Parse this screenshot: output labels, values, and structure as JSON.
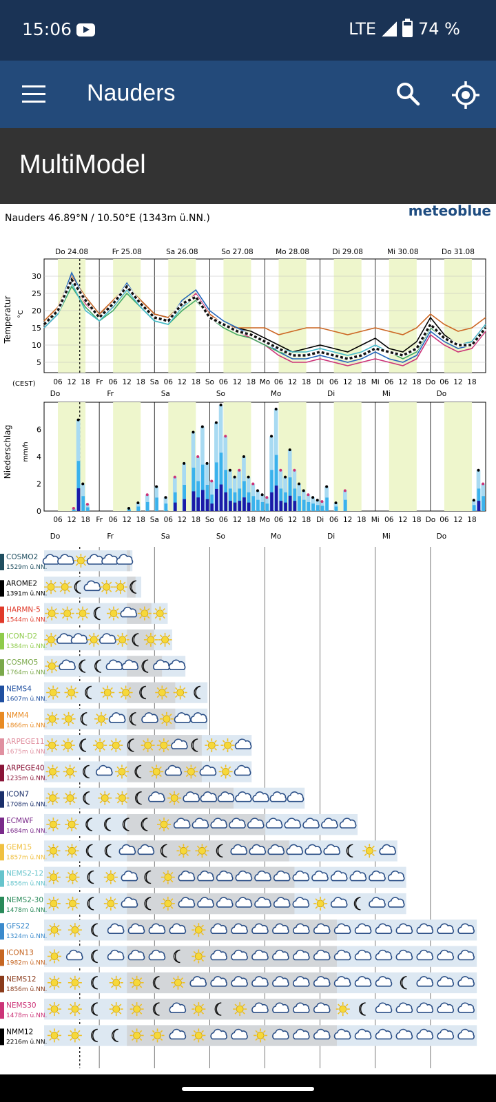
{
  "status": {
    "time": "15:06",
    "network": "LTE",
    "battery": "74 %",
    "battery_level": 0.74
  },
  "appbar": {
    "title": "Nauders"
  },
  "subheader": {
    "title": "MultiModel"
  },
  "meteogram": {
    "brand": "meteoblue",
    "location": "Nauders  46.89°N / 10.50°E (1343m ü.NN.)",
    "day_labels_top": [
      "Do 24.08",
      "Fr 25.08",
      "Sa 26.08",
      "So 27.08",
      "Mo 28.08",
      "Di 29.08",
      "Mi 30.08",
      "Do 31.08"
    ],
    "day_labels_short": [
      "Do",
      "Fr",
      "Sa",
      "So",
      "Mo",
      "Di",
      "Mi",
      "Do"
    ],
    "hour_ticks": [
      "06",
      "12",
      "18"
    ],
    "timezone_label": "(CEST)",
    "temp_axis_label": "Temperatur",
    "temp_unit": "°C",
    "temp_ticks": [
      5,
      10,
      15,
      20,
      25,
      30
    ],
    "precip_axis_label": "Niederschlag",
    "precip_unit": "mm/h",
    "precip_ticks": [
      0,
      2,
      4,
      6
    ]
  },
  "chart_data": [
    {
      "type": "line",
      "ylabel": "Temperatur °C",
      "ylim": [
        2,
        35
      ],
      "x_hours": [
        0,
        6,
        12,
        18,
        24,
        30,
        36,
        42,
        48,
        54,
        60,
        66,
        72,
        78,
        84,
        90,
        96,
        102,
        108,
        114,
        120,
        126,
        132,
        138,
        144,
        150,
        156,
        162,
        168,
        174,
        180,
        186,
        192
      ],
      "series": [
        {
          "values": [
            16,
            20,
            28,
            24,
            19,
            22,
            27,
            23,
            19,
            18,
            22,
            24,
            18,
            16,
            15,
            14,
            12,
            10,
            8,
            9,
            10,
            9,
            8,
            10,
            12,
            9,
            8,
            11,
            18,
            13,
            10,
            11,
            16
          ],
          "color": "#000000"
        },
        {
          "values": [
            15,
            19,
            29,
            22,
            18,
            21,
            26,
            22,
            18,
            17,
            21,
            25,
            19,
            16,
            14,
            12,
            10,
            7,
            5,
            5,
            6,
            5,
            4,
            5,
            6,
            5,
            4,
            6,
            13,
            10,
            8,
            9,
            14
          ],
          "color": "#cc3377"
        },
        {
          "values": [
            17,
            21,
            30,
            24,
            19,
            23,
            27,
            23,
            19,
            18,
            22,
            24,
            19,
            16,
            15,
            15,
            15,
            13,
            14,
            15,
            15,
            14,
            13,
            14,
            15,
            14,
            13,
            15,
            19,
            16,
            14,
            15,
            18
          ],
          "color": "#cc6622"
        },
        {
          "values": [
            16,
            20,
            31,
            23,
            18,
            22,
            28,
            22,
            18,
            17,
            23,
            26,
            20,
            17,
            15,
            13,
            11,
            8,
            6,
            6,
            7,
            6,
            5,
            6,
            8,
            6,
            5,
            7,
            14,
            11,
            9,
            10,
            15
          ],
          "color": "#2266bb"
        },
        {
          "values": [
            16,
            19,
            27,
            21,
            17,
            20,
            25,
            21,
            17,
            16,
            20,
            23,
            18,
            15,
            13,
            12,
            10,
            8,
            7,
            7,
            8,
            7,
            6,
            7,
            9,
            8,
            6,
            8,
            15,
            12,
            10,
            10,
            15
          ],
          "color": "#44aa66"
        },
        {
          "values": [
            15,
            19,
            28,
            20,
            17,
            21,
            26,
            21,
            17,
            16,
            21,
            24,
            18,
            16,
            14,
            13,
            11,
            9,
            8,
            8,
            9,
            8,
            7,
            8,
            10,
            8,
            7,
            9,
            16,
            12,
            10,
            11,
            16
          ],
          "color": "#44bbcc"
        },
        {
          "values": [
            16,
            20,
            29,
            23,
            18,
            22,
            27,
            22,
            18,
            17,
            22,
            24,
            18,
            16,
            14,
            13,
            11,
            9,
            7,
            7,
            8,
            7,
            6,
            7,
            9,
            8,
            7,
            9,
            16,
            12,
            10,
            10,
            15
          ],
          "color": "#222222",
          "dashed": true
        }
      ]
    },
    {
      "type": "bar",
      "ylabel": "Niederschlag mm/h",
      "ylim": [
        0,
        8
      ],
      "x_hours": [
        12,
        14,
        16,
        18,
        36,
        40,
        44,
        48,
        52,
        56,
        60,
        64,
        66,
        68,
        70,
        72,
        74,
        76,
        78,
        80,
        82,
        84,
        86,
        88,
        90,
        92,
        94,
        96,
        98,
        100,
        102,
        104,
        106,
        108,
        110,
        112,
        114,
        116,
        118,
        120,
        122,
        126,
        130,
        186,
        188,
        190
      ],
      "values": [
        0.2,
        6.7,
        2.0,
        0.5,
        0.2,
        0.6,
        1.2,
        1.8,
        1.0,
        2.5,
        3.5,
        5.8,
        4.0,
        6.2,
        3.5,
        2.2,
        6.5,
        7.8,
        5.5,
        3.0,
        2.5,
        3.0,
        4.0,
        2.5,
        2.0,
        1.5,
        1.2,
        1.0,
        5.5,
        7.5,
        3.0,
        2.5,
        4.5,
        3.0,
        2.0,
        1.5,
        1.2,
        1.0,
        0.8,
        0.7,
        1.8,
        0.6,
        1.5,
        0.8,
        3.0,
        2.0
      ]
    }
  ],
  "models": [
    {
      "name": "COSMO2",
      "elev": "1529m ü.NN.",
      "color": "#1f4e5f",
      "len": 0.2,
      "icons": [
        "cloud",
        "cloud",
        "sun",
        "cloud",
        "cloud",
        "cloud"
      ]
    },
    {
      "name": "AROME2",
      "elev": "1391m ü.NN.",
      "color": "#000000",
      "len": 0.22,
      "icons": [
        "sun",
        "sun",
        "moon",
        "cloud",
        "sun",
        "sun",
        "moon"
      ]
    },
    {
      "name": "HARMN-5",
      "elev": "1544m ü.NN.",
      "color": "#e03a2a",
      "len": 0.28,
      "icons": [
        "sun",
        "sun",
        "sun",
        "moon",
        "sun",
        "cloud",
        "sun",
        "sun"
      ]
    },
    {
      "name": "ICON-D2",
      "elev": "1384m ü.NN.",
      "color": "#8ecb4a",
      "len": 0.29,
      "icons": [
        "sun",
        "cloud",
        "cloud",
        "sun",
        "cloud",
        "sun",
        "moon",
        "sun",
        "sun"
      ]
    },
    {
      "name": "COSMO5",
      "elev": "1764m ü.NN.",
      "color": "#7aa84a",
      "len": 0.32,
      "icons": [
        "sun",
        "cloud",
        "moon",
        "moon",
        "cloud",
        "cloud",
        "moon",
        "cloud",
        "cloud"
      ]
    },
    {
      "name": "NEMS4",
      "elev": "1607m ü.NN.",
      "color": "#1f4fa0",
      "len": 0.37,
      "icons": [
        "sun",
        "sun",
        "moon",
        "sun",
        "sun",
        "moon",
        "sun",
        "sun",
        "moon"
      ]
    },
    {
      "name": "NMM4",
      "elev": "1866m ü.NN.",
      "color": "#e88a22",
      "len": 0.37,
      "icons": [
        "sun",
        "sun",
        "moon",
        "sun",
        "cloud",
        "moon",
        "cloud",
        "sun",
        "cloud",
        "cloud"
      ]
    },
    {
      "name": "ARPEGE11",
      "elev": "1675m ü.NN.",
      "color": "#e090a0",
      "len": 0.47,
      "icons": [
        "sun",
        "sun",
        "moon",
        "sun",
        "sun",
        "moon",
        "sun",
        "sun",
        "cloud",
        "moon",
        "sun",
        "sun",
        "cloud"
      ]
    },
    {
      "name": "ARPEGE40",
      "elev": "1235m ü.NN.",
      "color": "#8a1538",
      "len": 0.47,
      "icons": [
        "sun",
        "sun",
        "moon",
        "cloud",
        "sun",
        "moon",
        "sun",
        "cloud",
        "sun",
        "cloud",
        "sun",
        "cloud"
      ]
    },
    {
      "name": "ICON7",
      "elev": "1708m ü.NN.",
      "color": "#1a2f6a",
      "len": 0.59,
      "icons": [
        "sun",
        "sun",
        "moon",
        "sun",
        "sun",
        "moon",
        "cloud",
        "sun",
        "cloud",
        "cloud",
        "cloud",
        "cloud",
        "cloud",
        "cloud",
        "cloud"
      ]
    },
    {
      "name": "ECMWF",
      "elev": "1684m ü.NN.",
      "color": "#7a2a8a",
      "len": 0.71,
      "icons": [
        "sun",
        "sun",
        "moon",
        "moon",
        "moon",
        "moon",
        "sun",
        "cloud",
        "cloud",
        "cloud",
        "cloud",
        "cloud",
        "cloud",
        "cloud",
        "cloud",
        "cloud",
        "cloud"
      ]
    },
    {
      "name": "GEM15",
      "elev": "1857m ü.NN.",
      "color": "#f0c040",
      "len": 0.8,
      "icons": [
        "sun",
        "sun",
        "moon",
        "moon",
        "cloud",
        "cloud",
        "moon",
        "sun",
        "sun",
        "moon",
        "cloud",
        "cloud",
        "cloud",
        "cloud",
        "cloud",
        "cloud",
        "moon",
        "sun",
        "cloud"
      ]
    },
    {
      "name": "NEMS2-12",
      "elev": "1856m ü.NN.",
      "color": "#66c4cc",
      "len": 0.82,
      "icons": [
        "sun",
        "sun",
        "moon",
        "sun",
        "cloud",
        "moon",
        "sun",
        "cloud",
        "cloud",
        "cloud",
        "cloud",
        "cloud",
        "cloud",
        "cloud",
        "cloud",
        "cloud",
        "cloud",
        "cloud",
        "cloud"
      ]
    },
    {
      "name": "NEMS2-30",
      "elev": "1478m ü.NN.",
      "color": "#2a8a5a",
      "len": 0.82,
      "icons": [
        "sun",
        "sun",
        "moon",
        "sun",
        "cloud",
        "moon",
        "sun",
        "cloud",
        "cloud",
        "cloud",
        "cloud",
        "cloud",
        "cloud",
        "cloud",
        "sun",
        "cloud",
        "moon",
        "cloud",
        "cloud"
      ]
    },
    {
      "name": "GFS22",
      "elev": "1324m ü.NN.",
      "color": "#3a8acc",
      "len": 0.98,
      "icons": [
        "sun",
        "sun",
        "moon",
        "cloud",
        "cloud",
        "cloud",
        "cloud",
        "sun",
        "cloud",
        "cloud",
        "cloud",
        "cloud",
        "cloud",
        "cloud",
        "cloud",
        "cloud",
        "cloud",
        "cloud",
        "cloud",
        "cloud",
        "cloud"
      ]
    },
    {
      "name": "ICON13",
      "elev": "1982m ü.NN.",
      "color": "#c66622",
      "len": 0.98,
      "icons": [
        "sun",
        "cloud",
        "moon",
        "cloud",
        "cloud",
        "cloud",
        "moon",
        "sun",
        "cloud",
        "cloud",
        "cloud",
        "cloud",
        "cloud",
        "cloud",
        "cloud",
        "cloud",
        "cloud",
        "cloud",
        "cloud",
        "cloud",
        "cloud"
      ]
    },
    {
      "name": "NEMS12",
      "elev": "1856m ü.NN.",
      "color": "#8a3a1a",
      "len": 0.98,
      "icons": [
        "sun",
        "sun",
        "moon",
        "sun",
        "sun",
        "moon",
        "sun",
        "cloud",
        "cloud",
        "cloud",
        "cloud",
        "cloud",
        "cloud",
        "cloud",
        "cloud",
        "cloud",
        "cloud",
        "moon",
        "cloud",
        "cloud",
        "cloud"
      ]
    },
    {
      "name": "NEMS30",
      "elev": "1478m ü.NN.",
      "color": "#cc3377",
      "len": 0.98,
      "icons": [
        "sun",
        "sun",
        "moon",
        "sun",
        "sun",
        "moon",
        "cloud",
        "sun",
        "moon",
        "sun",
        "cloud",
        "cloud",
        "cloud",
        "cloud",
        "sun",
        "moon",
        "cloud",
        "cloud",
        "cloud",
        "cloud",
        "cloud"
      ]
    },
    {
      "name": "NMM12",
      "elev": "2216m ü.NN.",
      "color": "#000000",
      "len": 0.98,
      "icons": [
        "sun",
        "sun",
        "moon",
        "moon",
        "sun",
        "sun",
        "cloud",
        "sun",
        "cloud",
        "cloud",
        "sun",
        "cloud",
        "cloud",
        "cloud",
        "cloud",
        "cloud",
        "cloud",
        "cloud",
        "cloud",
        "cloud",
        "cloud"
      ]
    }
  ]
}
